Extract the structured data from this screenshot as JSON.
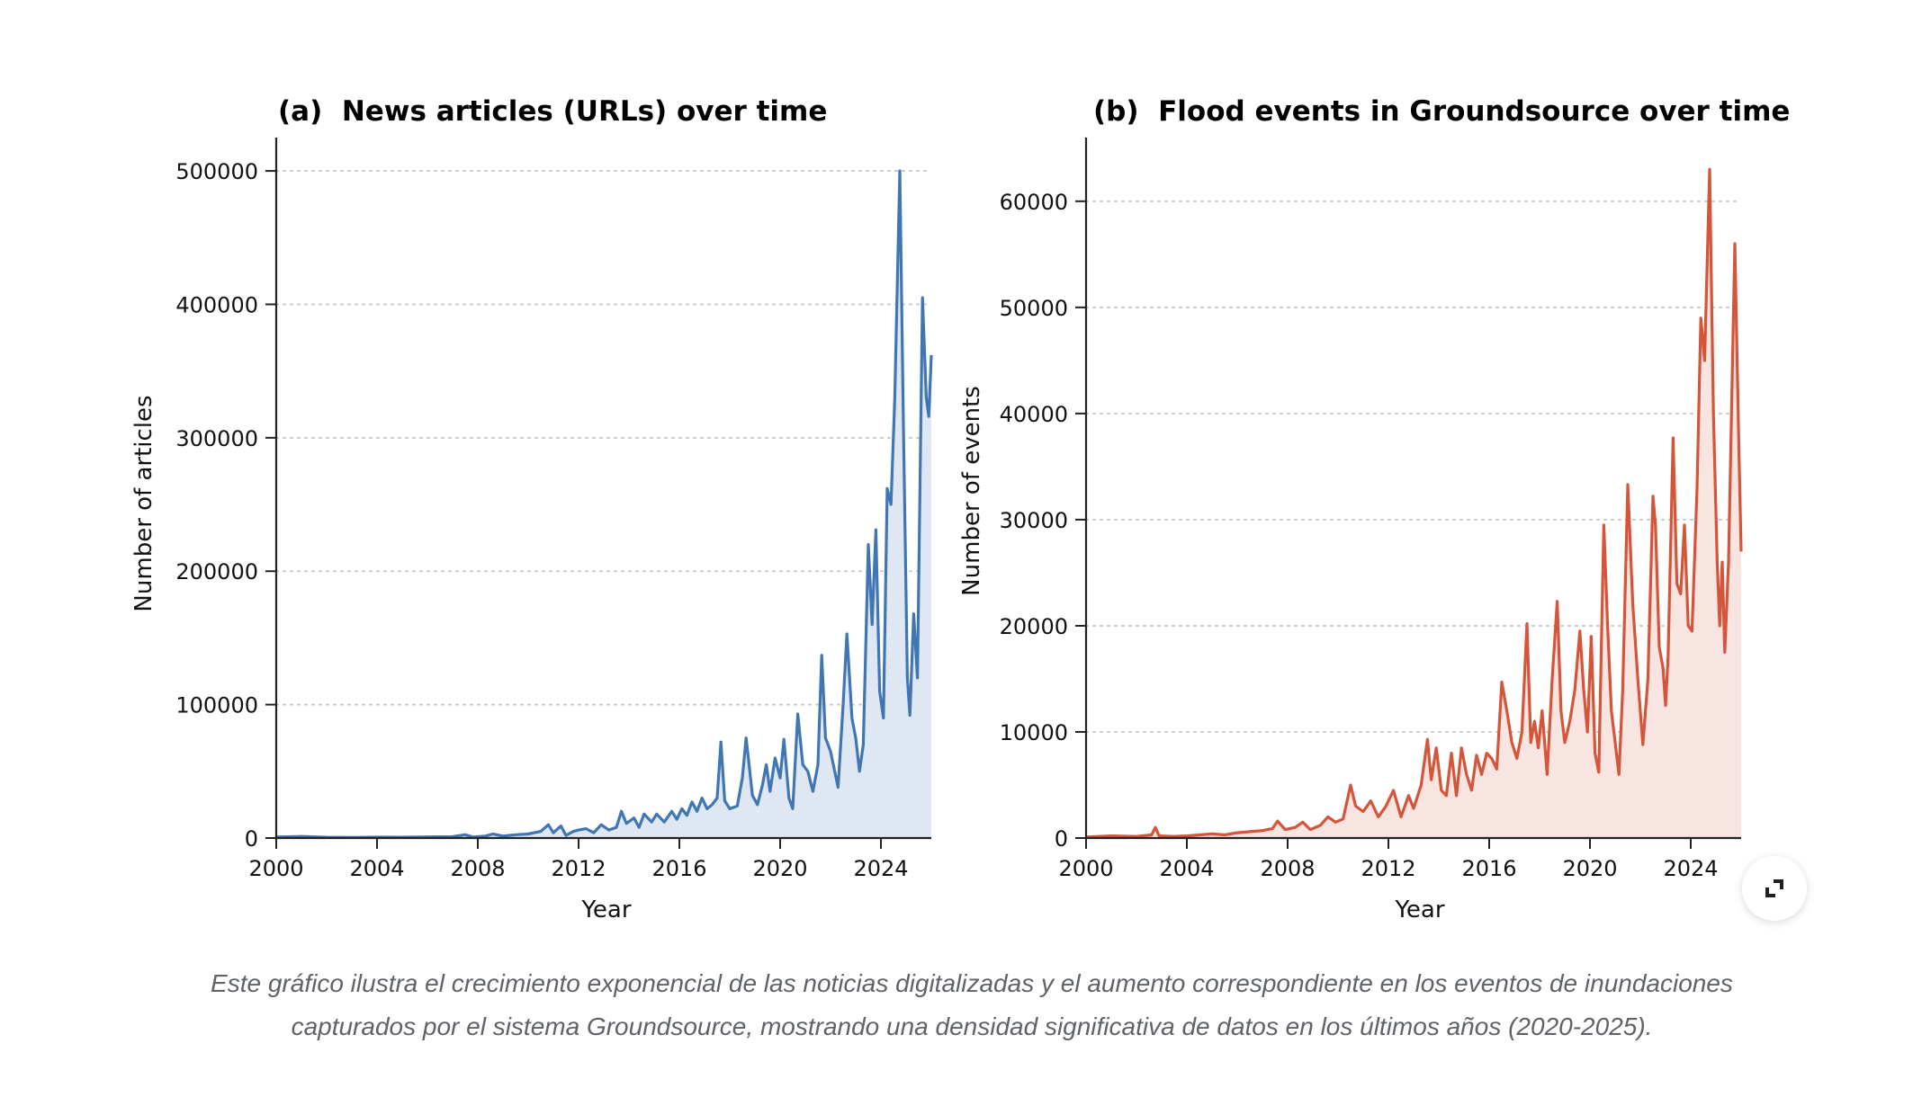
{
  "chart_data": [
    {
      "type": "area",
      "panel": "a",
      "title": "(a)  News articles (URLs) over time",
      "xlabel": "Year",
      "ylabel": "Number of articles",
      "xlim": [
        2000,
        2026
      ],
      "ylim": [
        0,
        525000
      ],
      "xticks": [
        2000,
        2004,
        2008,
        2012,
        2016,
        2020,
        2024
      ],
      "yticks": [
        0,
        100000,
        200000,
        300000,
        400000,
        500000
      ],
      "ytick_labels": [
        "0",
        "100000",
        "200000",
        "300000",
        "400000",
        "500000"
      ],
      "grid": "horizontal dotted",
      "color": "#3f76b3",
      "fill_color": "#dfe8f2",
      "series": [
        {
          "name": "News articles",
          "points": [
            [
              2000.0,
              800
            ],
            [
              2001.0,
              1200
            ],
            [
              2002.0,
              600
            ],
            [
              2003.0,
              500
            ],
            [
              2004.0,
              700
            ],
            [
              2005.0,
              600
            ],
            [
              2006.0,
              900
            ],
            [
              2007.0,
              1000
            ],
            [
              2007.5,
              2500
            ],
            [
              2007.8,
              800
            ],
            [
              2008.3,
              1500
            ],
            [
              2008.6,
              3000
            ],
            [
              2009.0,
              1500
            ],
            [
              2009.5,
              2500
            ],
            [
              2010.0,
              3000
            ],
            [
              2010.5,
              5000
            ],
            [
              2010.8,
              10000
            ],
            [
              2011.0,
              4000
            ],
            [
              2011.3,
              9000
            ],
            [
              2011.5,
              2000
            ],
            [
              2011.8,
              5000
            ],
            [
              2012.0,
              6000
            ],
            [
              2012.3,
              7000
            ],
            [
              2012.6,
              4000
            ],
            [
              2012.9,
              10000
            ],
            [
              2013.2,
              6000
            ],
            [
              2013.5,
              8000
            ],
            [
              2013.7,
              20000
            ],
            [
              2013.9,
              11000
            ],
            [
              2014.2,
              15000
            ],
            [
              2014.4,
              8000
            ],
            [
              2014.6,
              18000
            ],
            [
              2014.9,
              12000
            ],
            [
              2015.1,
              18000
            ],
            [
              2015.4,
              12000
            ],
            [
              2015.7,
              20000
            ],
            [
              2015.9,
              14000
            ],
            [
              2016.1,
              22000
            ],
            [
              2016.3,
              17000
            ],
            [
              2016.5,
              27000
            ],
            [
              2016.7,
              20000
            ],
            [
              2016.9,
              30000
            ],
            [
              2017.1,
              22000
            ],
            [
              2017.3,
              25000
            ],
            [
              2017.5,
              30000
            ],
            [
              2017.65,
              72000
            ],
            [
              2017.8,
              28000
            ],
            [
              2018.0,
              22000
            ],
            [
              2018.3,
              24000
            ],
            [
              2018.5,
              45000
            ],
            [
              2018.65,
              75000
            ],
            [
              2018.9,
              32000
            ],
            [
              2019.1,
              25000
            ],
            [
              2019.3,
              40000
            ],
            [
              2019.45,
              55000
            ],
            [
              2019.6,
              35000
            ],
            [
              2019.8,
              60000
            ],
            [
              2020.0,
              45000
            ],
            [
              2020.15,
              74000
            ],
            [
              2020.35,
              30000
            ],
            [
              2020.5,
              22000
            ],
            [
              2020.7,
              93000
            ],
            [
              2020.9,
              55000
            ],
            [
              2021.1,
              50000
            ],
            [
              2021.3,
              35000
            ],
            [
              2021.5,
              55000
            ],
            [
              2021.65,
              137000
            ],
            [
              2021.8,
              75000
            ],
            [
              2022.0,
              65000
            ],
            [
              2022.3,
              38000
            ],
            [
              2022.5,
              100000
            ],
            [
              2022.65,
              153000
            ],
            [
              2022.85,
              90000
            ],
            [
              2023.0,
              75000
            ],
            [
              2023.15,
              50000
            ],
            [
              2023.3,
              70000
            ],
            [
              2023.5,
              220000
            ],
            [
              2023.65,
              160000
            ],
            [
              2023.8,
              231000
            ],
            [
              2023.95,
              110000
            ],
            [
              2024.1,
              90000
            ],
            [
              2024.25,
              262000
            ],
            [
              2024.4,
              250000
            ],
            [
              2024.55,
              330000
            ],
            [
              2024.75,
              500000
            ],
            [
              2024.9,
              300000
            ],
            [
              2025.05,
              120000
            ],
            [
              2025.15,
              92000
            ],
            [
              2025.3,
              168000
            ],
            [
              2025.45,
              120000
            ],
            [
              2025.65,
              405000
            ],
            [
              2025.8,
              330000
            ],
            [
              2025.9,
              316000
            ],
            [
              2026.0,
              362000
            ]
          ]
        }
      ]
    },
    {
      "type": "area",
      "panel": "b",
      "title": "(b)  Flood events in Groundsource over time",
      "xlabel": "Year",
      "ylabel": "Number of events",
      "xlim": [
        2000,
        2026
      ],
      "ylim": [
        0,
        66000
      ],
      "xticks": [
        2000,
        2004,
        2008,
        2012,
        2016,
        2020,
        2024
      ],
      "yticks": [
        0,
        10000,
        20000,
        30000,
        40000,
        50000,
        60000
      ],
      "ytick_labels": [
        "0",
        "10000",
        "20000",
        "30000",
        "40000",
        "50000",
        "60000"
      ],
      "grid": "horizontal dotted",
      "color": "#d4553a",
      "fill_color": "#f8e4e0",
      "series": [
        {
          "name": "Flood events",
          "points": [
            [
              2000.0,
              100
            ],
            [
              2001.0,
              200
            ],
            [
              2002.0,
              150
            ],
            [
              2002.6,
              300
            ],
            [
              2002.75,
              1000
            ],
            [
              2002.9,
              200
            ],
            [
              2003.5,
              150
            ],
            [
              2004.0,
              200
            ],
            [
              2004.5,
              300
            ],
            [
              2005.0,
              400
            ],
            [
              2005.5,
              300
            ],
            [
              2006.0,
              500
            ],
            [
              2006.5,
              600
            ],
            [
              2007.0,
              700
            ],
            [
              2007.4,
              900
            ],
            [
              2007.6,
              1600
            ],
            [
              2007.9,
              800
            ],
            [
              2008.3,
              1000
            ],
            [
              2008.6,
              1500
            ],
            [
              2008.9,
              800
            ],
            [
              2009.3,
              1200
            ],
            [
              2009.6,
              2000
            ],
            [
              2009.9,
              1500
            ],
            [
              2010.2,
              1800
            ],
            [
              2010.5,
              5000
            ],
            [
              2010.7,
              3000
            ],
            [
              2011.0,
              2500
            ],
            [
              2011.3,
              3500
            ],
            [
              2011.6,
              2000
            ],
            [
              2011.9,
              3000
            ],
            [
              2012.2,
              4500
            ],
            [
              2012.5,
              2000
            ],
            [
              2012.8,
              4000
            ],
            [
              2013.0,
              2800
            ],
            [
              2013.3,
              5000
            ],
            [
              2013.55,
              9300
            ],
            [
              2013.7,
              5500
            ],
            [
              2013.9,
              8500
            ],
            [
              2014.1,
              4500
            ],
            [
              2014.3,
              4000
            ],
            [
              2014.5,
              8000
            ],
            [
              2014.7,
              4000
            ],
            [
              2014.9,
              8500
            ],
            [
              2015.1,
              6000
            ],
            [
              2015.3,
              4500
            ],
            [
              2015.5,
              7800
            ],
            [
              2015.7,
              6000
            ],
            [
              2015.9,
              8000
            ],
            [
              2016.1,
              7500
            ],
            [
              2016.3,
              6500
            ],
            [
              2016.5,
              14700
            ],
            [
              2016.7,
              12000
            ],
            [
              2016.9,
              9000
            ],
            [
              2017.1,
              7500
            ],
            [
              2017.3,
              10000
            ],
            [
              2017.5,
              20200
            ],
            [
              2017.65,
              9000
            ],
            [
              2017.8,
              11000
            ],
            [
              2017.95,
              8500
            ],
            [
              2018.1,
              12000
            ],
            [
              2018.3,
              6000
            ],
            [
              2018.5,
              15000
            ],
            [
              2018.7,
              22300
            ],
            [
              2018.85,
              12000
            ],
            [
              2019.0,
              9000
            ],
            [
              2019.2,
              11000
            ],
            [
              2019.4,
              14000
            ],
            [
              2019.6,
              19500
            ],
            [
              2019.75,
              14000
            ],
            [
              2019.9,
              10000
            ],
            [
              2020.05,
              19000
            ],
            [
              2020.2,
              8000
            ],
            [
              2020.35,
              6200
            ],
            [
              2020.55,
              29500
            ],
            [
              2020.7,
              20000
            ],
            [
              2020.85,
              12000
            ],
            [
              2021.0,
              9000
            ],
            [
              2021.15,
              6000
            ],
            [
              2021.3,
              14000
            ],
            [
              2021.5,
              33300
            ],
            [
              2021.7,
              22000
            ],
            [
              2021.9,
              15000
            ],
            [
              2022.1,
              8800
            ],
            [
              2022.3,
              15000
            ],
            [
              2022.5,
              32200
            ],
            [
              2022.6,
              29500
            ],
            [
              2022.75,
              18000
            ],
            [
              2022.9,
              16000
            ],
            [
              2023.0,
              12500
            ],
            [
              2023.1,
              17000
            ],
            [
              2023.3,
              37700
            ],
            [
              2023.45,
              24000
            ],
            [
              2023.6,
              23000
            ],
            [
              2023.75,
              29500
            ],
            [
              2023.9,
              20000
            ],
            [
              2024.05,
              19500
            ],
            [
              2024.25,
              33000
            ],
            [
              2024.4,
              49000
            ],
            [
              2024.55,
              45000
            ],
            [
              2024.75,
              63000
            ],
            [
              2024.9,
              40000
            ],
            [
              2025.05,
              26000
            ],
            [
              2025.15,
              20000
            ],
            [
              2025.25,
              26000
            ],
            [
              2025.35,
              17500
            ],
            [
              2025.5,
              26000
            ],
            [
              2025.75,
              56000
            ],
            [
              2025.9,
              38000
            ],
            [
              2026.0,
              27000
            ]
          ]
        }
      ]
    }
  ],
  "caption": {
    "line1": "Este gráfico ilustra el crecimiento exponencial de las noticias digitalizadas y el aumento correspondiente en los eventos de inundaciones",
    "line2": "capturados por el sistema Groundsource, mostrando una densidad significativa de datos en los últimos años (2020-2025)."
  },
  "controls": {
    "expand_icon": "expand-icon"
  }
}
